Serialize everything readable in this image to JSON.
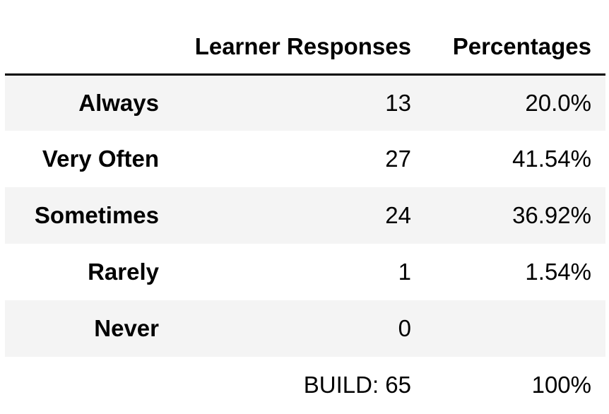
{
  "table": {
    "columns": [
      "Learner Responses",
      "Percentages"
    ],
    "rows": [
      {
        "label": "Always",
        "responses": "13",
        "percentage": "20.0%"
      },
      {
        "label": "Very Often",
        "responses": "27",
        "percentage": "41.54%"
      },
      {
        "label": "Sometimes",
        "responses": "24",
        "percentage": "36.92%"
      },
      {
        "label": "Rarely",
        "responses": "1",
        "percentage": "1.54%"
      },
      {
        "label": "Never",
        "responses": "0",
        "percentage": ""
      }
    ],
    "total": {
      "label": "",
      "responses": "BUILD: 65",
      "percentage": "100%"
    }
  },
  "colors": {
    "stripe": "#f4f4f4",
    "header_rule": "#000000",
    "text": "#000000"
  }
}
